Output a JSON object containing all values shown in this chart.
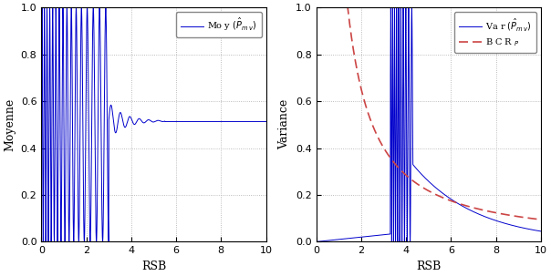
{
  "fig_width": 6.04,
  "fig_height": 3.03,
  "dpi": 100,
  "background_color": "#ffffff",
  "xlim": [
    0,
    10
  ],
  "ylim": [
    0,
    1
  ],
  "xlabel": "RSB",
  "left_ylabel": "Moyenne",
  "right_ylabel": "Variance",
  "xticks": [
    0,
    2,
    4,
    6,
    8,
    10
  ],
  "yticks": [
    0,
    0.2,
    0.4,
    0.6,
    0.8,
    1.0
  ],
  "grid_color": "#aaaaaa",
  "grid_linestyle": ":",
  "line_color_blue": "#0000cc",
  "line_color_red": "#cc4444",
  "legend1_label": "Mo y $(\\hat{P}_{m\\,v})$",
  "legend2a_label": "Va r $(\\hat{P}_{m\\,v})$",
  "legend2b_label": "B C R $_{P}$"
}
